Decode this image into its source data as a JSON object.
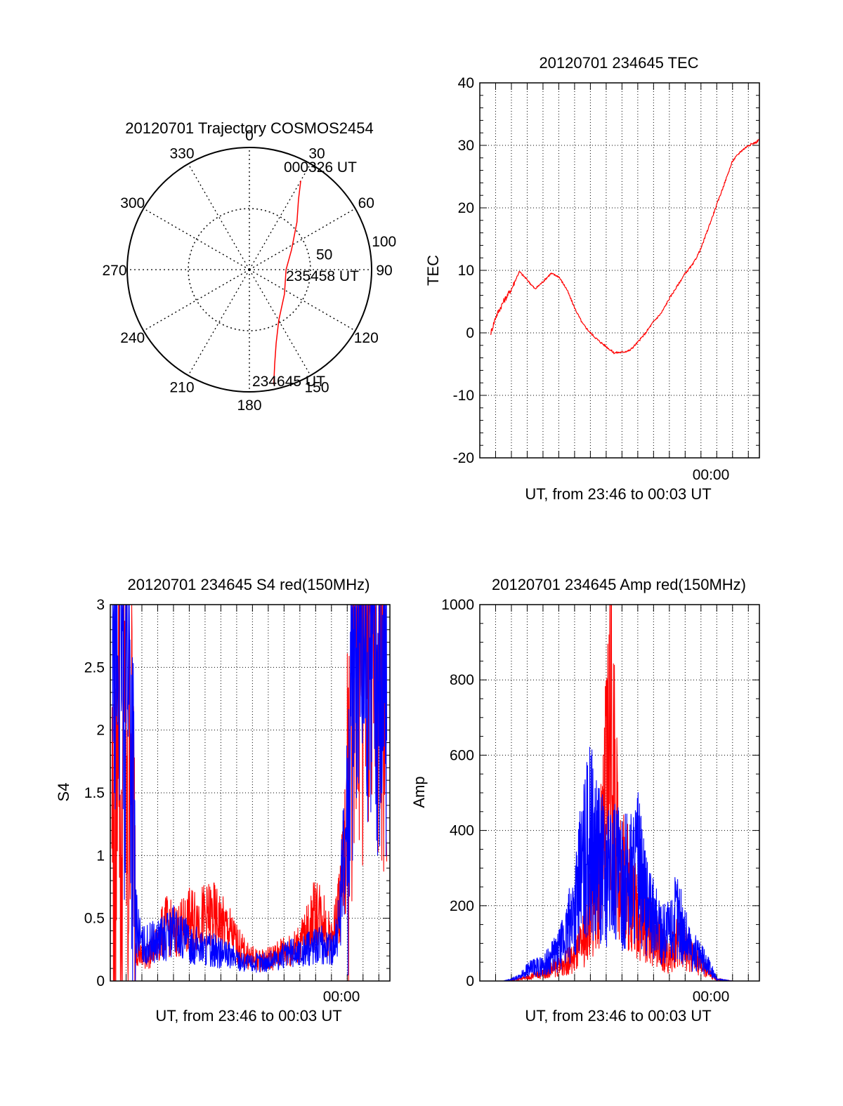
{
  "chart_data": [
    {
      "type": "polar",
      "title": "20120701 Trajectory COSMOS2454",
      "angle_labels": [
        "0",
        "30",
        "60",
        "90",
        "120",
        "150",
        "180",
        "210",
        "240",
        "270",
        "300",
        "330"
      ],
      "radius_labels": [
        "50",
        "100"
      ],
      "rlim": [
        0,
        100
      ],
      "grid": true,
      "point_labels": [
        {
          "name": "start",
          "text": "234645 UT"
        },
        {
          "name": "middle",
          "text": "235458 UT"
        },
        {
          "name": "end",
          "text": "000326 UT"
        }
      ],
      "series": [
        {
          "color": "#ff0000",
          "points": [
            {
              "az": 168,
              "r": 96
            },
            {
              "az": 165,
              "r": 80
            },
            {
              "az": 160,
              "r": 64
            },
            {
              "az": 150,
              "r": 48
            },
            {
              "az": 125,
              "r": 35
            },
            {
              "az": 90,
              "r": 30
            },
            {
              "az": 65,
              "r": 38
            },
            {
              "az": 45,
              "r": 55
            },
            {
              "az": 35,
              "r": 70
            },
            {
              "az": 30,
              "r": 84
            }
          ]
        }
      ]
    },
    {
      "type": "line",
      "title": "20120701 234645 TEC",
      "xlabel": "UT, from 23:46 to 00:03 UT",
      "ylabel": "TEC",
      "xlim": [
        0,
        17.7
      ],
      "ylim": [
        -20,
        40
      ],
      "yticks": [
        "-20",
        "-10",
        "0",
        "10",
        "20",
        "30",
        "40"
      ],
      "x_tick_label": {
        "at": 14,
        "text": "00:00"
      },
      "grid": true,
      "series": [
        {
          "color": "#ff0000",
          "x": [
            0.7,
            1.0,
            1.5,
            2.0,
            2.5,
            3.0,
            3.5,
            4.0,
            4.5,
            5.0,
            5.5,
            6.0,
            6.5,
            7.0,
            7.5,
            8.0,
            8.5,
            9.0,
            9.5,
            10.0,
            10.5,
            11.0,
            11.5,
            12.0,
            12.5,
            13.0,
            13.5,
            14.0,
            14.5,
            15.0,
            15.5,
            16.0,
            16.5,
            17.0,
            17.5,
            17.7
          ],
          "values": [
            0,
            2.5,
            5,
            7,
            9.8,
            8.5,
            7,
            8.2,
            9.5,
            9.0,
            7,
            4,
            1.5,
            0,
            -1.2,
            -2.2,
            -3.2,
            -3.1,
            -2.8,
            -1.5,
            0,
            1.8,
            3.2,
            5.5,
            7.5,
            9.5,
            11,
            13.5,
            17,
            20.5,
            24,
            27.5,
            29,
            30,
            30.5,
            31
          ]
        }
      ]
    },
    {
      "type": "line",
      "title": "20120701 234645 S4 red(150MHz)",
      "xlabel": "UT, from 23:46 to 00:03 UT",
      "ylabel": "S4",
      "xlim": [
        0,
        17.7
      ],
      "ylim": [
        0,
        3
      ],
      "yticks": [
        "0",
        "0.5",
        "1",
        "1.5",
        "2",
        "2.5",
        "3"
      ],
      "x_tick_label": {
        "at": 14,
        "text": "00:00"
      },
      "grid": true,
      "series": [
        {
          "color": "#ff0000",
          "x": [
            0.1,
            0.3,
            0.5,
            0.7,
            0.9,
            1.1,
            1.3,
            1.6,
            2.0,
            2.5,
            3.0,
            3.5,
            4.0,
            4.5,
            5.0,
            5.5,
            6.0,
            6.5,
            7.0,
            7.5,
            8.0,
            8.5,
            9.0,
            9.5,
            10.0,
            10.5,
            11.0,
            11.5,
            12.0,
            12.5,
            13.0,
            13.5,
            14.0,
            14.5,
            15.0,
            15.5,
            16.0,
            16.5,
            17.0,
            17.5
          ],
          "values": [
            1.5,
            0.4,
            3.0,
            0.2,
            3.0,
            0.5,
            2.5,
            0.3,
            0.18,
            0.22,
            0.3,
            0.45,
            0.4,
            0.42,
            0.48,
            0.5,
            0.5,
            0.52,
            0.45,
            0.4,
            0.3,
            0.22,
            0.18,
            0.16,
            0.18,
            0.2,
            0.25,
            0.25,
            0.3,
            0.4,
            0.55,
            0.5,
            0.3,
            0.6,
            1.2,
            2.9,
            2.5,
            2.8,
            2.6,
            2.2
          ]
        },
        {
          "color": "#0000ff",
          "x": [
            0.1,
            0.3,
            0.5,
            0.7,
            0.9,
            1.1,
            1.3,
            1.6,
            2.0,
            2.5,
            3.0,
            3.5,
            4.0,
            4.5,
            5.0,
            5.5,
            6.0,
            6.5,
            7.0,
            7.5,
            8.0,
            8.5,
            9.0,
            9.5,
            10.0,
            10.5,
            11.0,
            11.5,
            12.0,
            12.5,
            13.0,
            13.5,
            14.0,
            14.5,
            15.0,
            15.5,
            16.0,
            16.5,
            17.0,
            17.5
          ],
          "values": [
            2.8,
            3.0,
            2.5,
            3.0,
            2.2,
            3.0,
            2.0,
            0.5,
            0.28,
            0.3,
            0.32,
            0.35,
            0.4,
            0.35,
            0.3,
            0.28,
            0.25,
            0.25,
            0.22,
            0.2,
            0.18,
            0.15,
            0.14,
            0.15,
            0.15,
            0.18,
            0.2,
            0.22,
            0.22,
            0.25,
            0.3,
            0.28,
            0.25,
            0.45,
            1.5,
            2.8,
            2.7,
            2.9,
            2.5,
            2.3
          ]
        }
      ]
    },
    {
      "type": "line",
      "title": "20120701 234645 Amp red(150MHz)",
      "xlabel": "UT, from 23:46 to 00:03 UT",
      "ylabel": "Amp",
      "xlim": [
        0,
        17.7
      ],
      "ylim": [
        0,
        1000
      ],
      "yticks": [
        "0",
        "200",
        "400",
        "600",
        "800",
        "1000"
      ],
      "x_tick_label": {
        "at": 14,
        "text": "00:00"
      },
      "grid": true,
      "series": [
        {
          "color": "#ff0000",
          "x": [
            0.5,
            1.5,
            2.5,
            3.0,
            4.0,
            5.0,
            6.0,
            6.5,
            7.0,
            7.5,
            7.8,
            8.0,
            8.3,
            8.6,
            9.0,
            9.5,
            10.0,
            10.5,
            11.0,
            11.5,
            12.0,
            12.5,
            13.0,
            13.5,
            14.0,
            14.5,
            15.0,
            16.0,
            17.5
          ],
          "values": [
            0,
            0,
            5,
            10,
            20,
            40,
            60,
            100,
            180,
            260,
            350,
            520,
            775,
            400,
            300,
            230,
            180,
            150,
            120,
            90,
            60,
            100,
            90,
            60,
            40,
            20,
            5,
            0,
            0
          ]
        },
        {
          "color": "#0000ff",
          "x": [
            0.5,
            1.5,
            2.5,
            3.0,
            4.0,
            5.0,
            5.5,
            6.0,
            6.5,
            7.0,
            7.5,
            8.0,
            8.5,
            9.0,
            9.5,
            10.0,
            10.5,
            11.0,
            11.5,
            12.0,
            12.5,
            13.0,
            13.5,
            14.0,
            14.5,
            15.0,
            16.0,
            17.5
          ],
          "values": [
            0,
            0,
            10,
            30,
            40,
            80,
            120,
            200,
            300,
            380,
            320,
            270,
            300,
            250,
            280,
            300,
            200,
            160,
            140,
            130,
            180,
            120,
            80,
            60,
            40,
            5,
            0,
            0
          ]
        }
      ]
    }
  ]
}
